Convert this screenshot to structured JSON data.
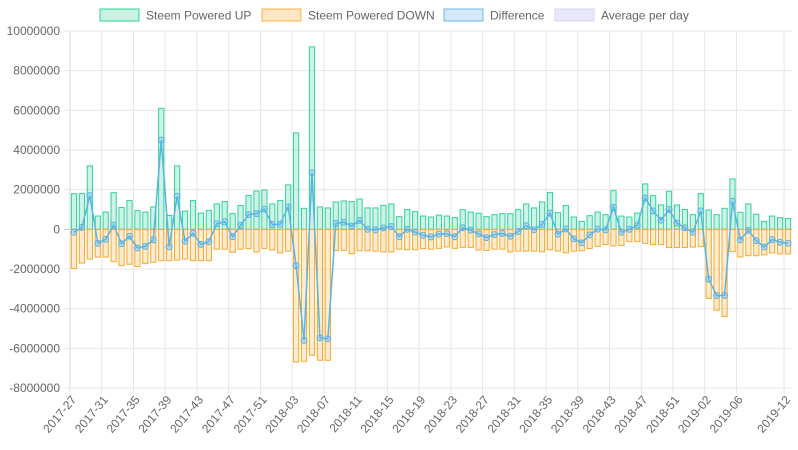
{
  "chart_data": {
    "type": "bar",
    "title": "",
    "xlabel": "",
    "ylabel": "",
    "ylim": [
      -8000000,
      10000000
    ],
    "y_ticks": [
      "10000000",
      "8000000",
      "6000000",
      "4000000",
      "2000000",
      "0",
      "-2000000",
      "-4000000",
      "-6000000",
      "-8000000"
    ],
    "y_tick_values": [
      10000000,
      8000000,
      6000000,
      4000000,
      2000000,
      0,
      -2000000,
      -4000000,
      -6000000,
      -8000000
    ],
    "grid": true,
    "legend_position": "top",
    "legend": [
      {
        "label": "Steem Powered UP",
        "fill": "#c9f2e2",
        "border": "#2fd39a"
      },
      {
        "label": "Steem Powered DOWN",
        "fill": "#fde6c4",
        "border": "#f7b04a"
      },
      {
        "label": "Difference",
        "fill": "#d3e9f8",
        "border": "#6cb8e6"
      },
      {
        "label": "Average per day",
        "fill": "#e8e8fa",
        "border": "#d6d6f2"
      }
    ],
    "categories": [
      "2017-27",
      "2017-28",
      "2017-29",
      "2017-30",
      "2017-31",
      "2017-32",
      "2017-33",
      "2017-34",
      "2017-35",
      "2017-36",
      "2017-37",
      "2017-38",
      "2017-39",
      "2017-40",
      "2017-41",
      "2017-42",
      "2017-43",
      "2017-44",
      "2017-45",
      "2017-46",
      "2017-47",
      "2017-48",
      "2017-49",
      "2017-50",
      "2017-51",
      "2017-52",
      "2018-01",
      "2018-02",
      "2018-03",
      "2018-04",
      "2018-05",
      "2018-06",
      "2018-07",
      "2018-08",
      "2018-09",
      "2018-10",
      "2018-11",
      "2018-12",
      "2018-13",
      "2018-14",
      "2018-15",
      "2018-16",
      "2018-17",
      "2018-18",
      "2018-19",
      "2018-20",
      "2018-21",
      "2018-22",
      "2018-23",
      "2018-24",
      "2018-25",
      "2018-26",
      "2018-27",
      "2018-28",
      "2018-29",
      "2018-30",
      "2018-31",
      "2018-32",
      "2018-33",
      "2018-34",
      "2018-35",
      "2018-36",
      "2018-37",
      "2018-38",
      "2018-39",
      "2018-40",
      "2018-41",
      "2018-42",
      "2018-43",
      "2018-44",
      "2018-45",
      "2018-46",
      "2018-47",
      "2018-48",
      "2018-49",
      "2018-50",
      "2018-51",
      "2018-52",
      "2019-00",
      "2019-01",
      "2019-02",
      "2019-03",
      "2019-04",
      "2019-05",
      "2019-06",
      "2019-07",
      "2019-08",
      "2019-09",
      "2019-10",
      "2019-11",
      "2019-12"
    ],
    "x_tick_labels": [
      "2017-27",
      "2017-31",
      "2017-35",
      "2017-39",
      "2017-43",
      "2017-47",
      "2017-51",
      "2018-03",
      "2018-07",
      "2018-11",
      "2018-15",
      "2018-19",
      "2018-23",
      "2018-27",
      "2018-31",
      "2018-35",
      "2018-39",
      "2018-43",
      "2018-47",
      "2018-51",
      "2019-02",
      "2019-06",
      "2019-12"
    ],
    "series": [
      {
        "name": "Steem Powered UP",
        "values": [
          1800000,
          1800000,
          3200000,
          670000,
          870000,
          1850000,
          1100000,
          1450000,
          940000,
          870000,
          1130000,
          6100000,
          700000,
          3200000,
          920000,
          1450000,
          820000,
          960000,
          1280000,
          1400000,
          790000,
          1200000,
          1710000,
          1930000,
          1980000,
          1280000,
          1450000,
          2240000,
          4860000,
          1060000,
          9200000,
          1130000,
          1080000,
          1380000,
          1430000,
          1400000,
          1530000,
          1080000,
          1080000,
          1210000,
          1280000,
          640000,
          1000000,
          890000,
          670000,
          620000,
          720000,
          670000,
          590000,
          990000,
          870000,
          810000,
          640000,
          740000,
          790000,
          790000,
          990000,
          1280000,
          1080000,
          1380000,
          1850000,
          840000,
          1200000,
          620000,
          400000,
          690000,
          870000,
          740000,
          1950000,
          670000,
          620000,
          820000,
          2290000,
          1700000,
          1230000,
          1920000,
          1230000,
          1000000,
          740000,
          1800000,
          970000,
          740000,
          1060000,
          2540000,
          860000,
          1280000,
          760000,
          400000,
          670000,
          590000,
          540000
        ]
      },
      {
        "name": "Steem Powered DOWN",
        "values": [
          -1970000,
          -1700000,
          -1500000,
          -1400000,
          -1400000,
          -1630000,
          -1830000,
          -1760000,
          -1880000,
          -1730000,
          -1660000,
          -1580000,
          -1580000,
          -1550000,
          -1500000,
          -1580000,
          -1580000,
          -1580000,
          -1000000,
          -1000000,
          -1160000,
          -1000000,
          -970000,
          -1140000,
          -960000,
          -1040000,
          -1190000,
          -1100000,
          -6690000,
          -6650000,
          -6350000,
          -6600000,
          -6600000,
          -1060000,
          -1060000,
          -1230000,
          -1080000,
          -1080000,
          -1100000,
          -1140000,
          -1140000,
          -1000000,
          -1030000,
          -1030000,
          -970000,
          -1000000,
          -960000,
          -890000,
          -960000,
          -910000,
          -910000,
          -1040000,
          -1060000,
          -1000000,
          -1000000,
          -1140000,
          -1100000,
          -1100000,
          -1100000,
          -1130000,
          -1030000,
          -1090000,
          -1180000,
          -1100000,
          -1080000,
          -970000,
          -860000,
          -770000,
          -840000,
          -820000,
          -620000,
          -620000,
          -710000,
          -770000,
          -770000,
          -920000,
          -920000,
          -920000,
          -890000,
          -870000,
          -3480000,
          -4080000,
          -4390000,
          -1130000,
          -1390000,
          -1330000,
          -1330000,
          -1290000,
          -1190000,
          -1240000,
          -1240000
        ]
      },
      {
        "name": "Difference",
        "values": [
          -150000,
          100000,
          1700000,
          -700000,
          -500000,
          220000,
          -730000,
          -350000,
          -940000,
          -860000,
          -530000,
          4500000,
          -880000,
          1670000,
          -600000,
          -200000,
          -760000,
          -620000,
          280000,
          380000,
          -370000,
          200000,
          740000,
          790000,
          1020000,
          240000,
          260000,
          1130000,
          -1830000,
          -5600000,
          2850000,
          -5470000,
          -5520000,
          300000,
          360000,
          170000,
          450000,
          0,
          -30000,
          70000,
          140000,
          -370000,
          0,
          -140000,
          -300000,
          -380000,
          -240000,
          -220000,
          -370000,
          80000,
          -40000,
          -230000,
          -420000,
          -260000,
          -210000,
          -350000,
          -110000,
          180000,
          -20000,
          250000,
          820000,
          -250000,
          20000,
          -480000,
          -680000,
          -280000,
          10000,
          -30000,
          1110000,
          -150000,
          0,
          200000,
          1580000,
          930000,
          460000,
          1000000,
          310000,
          80000,
          -150000,
          930000,
          -2510000,
          -3340000,
          -3330000,
          1410000,
          -530000,
          -50000,
          -570000,
          -890000,
          -520000,
          -650000,
          -700000
        ]
      }
    ]
  }
}
